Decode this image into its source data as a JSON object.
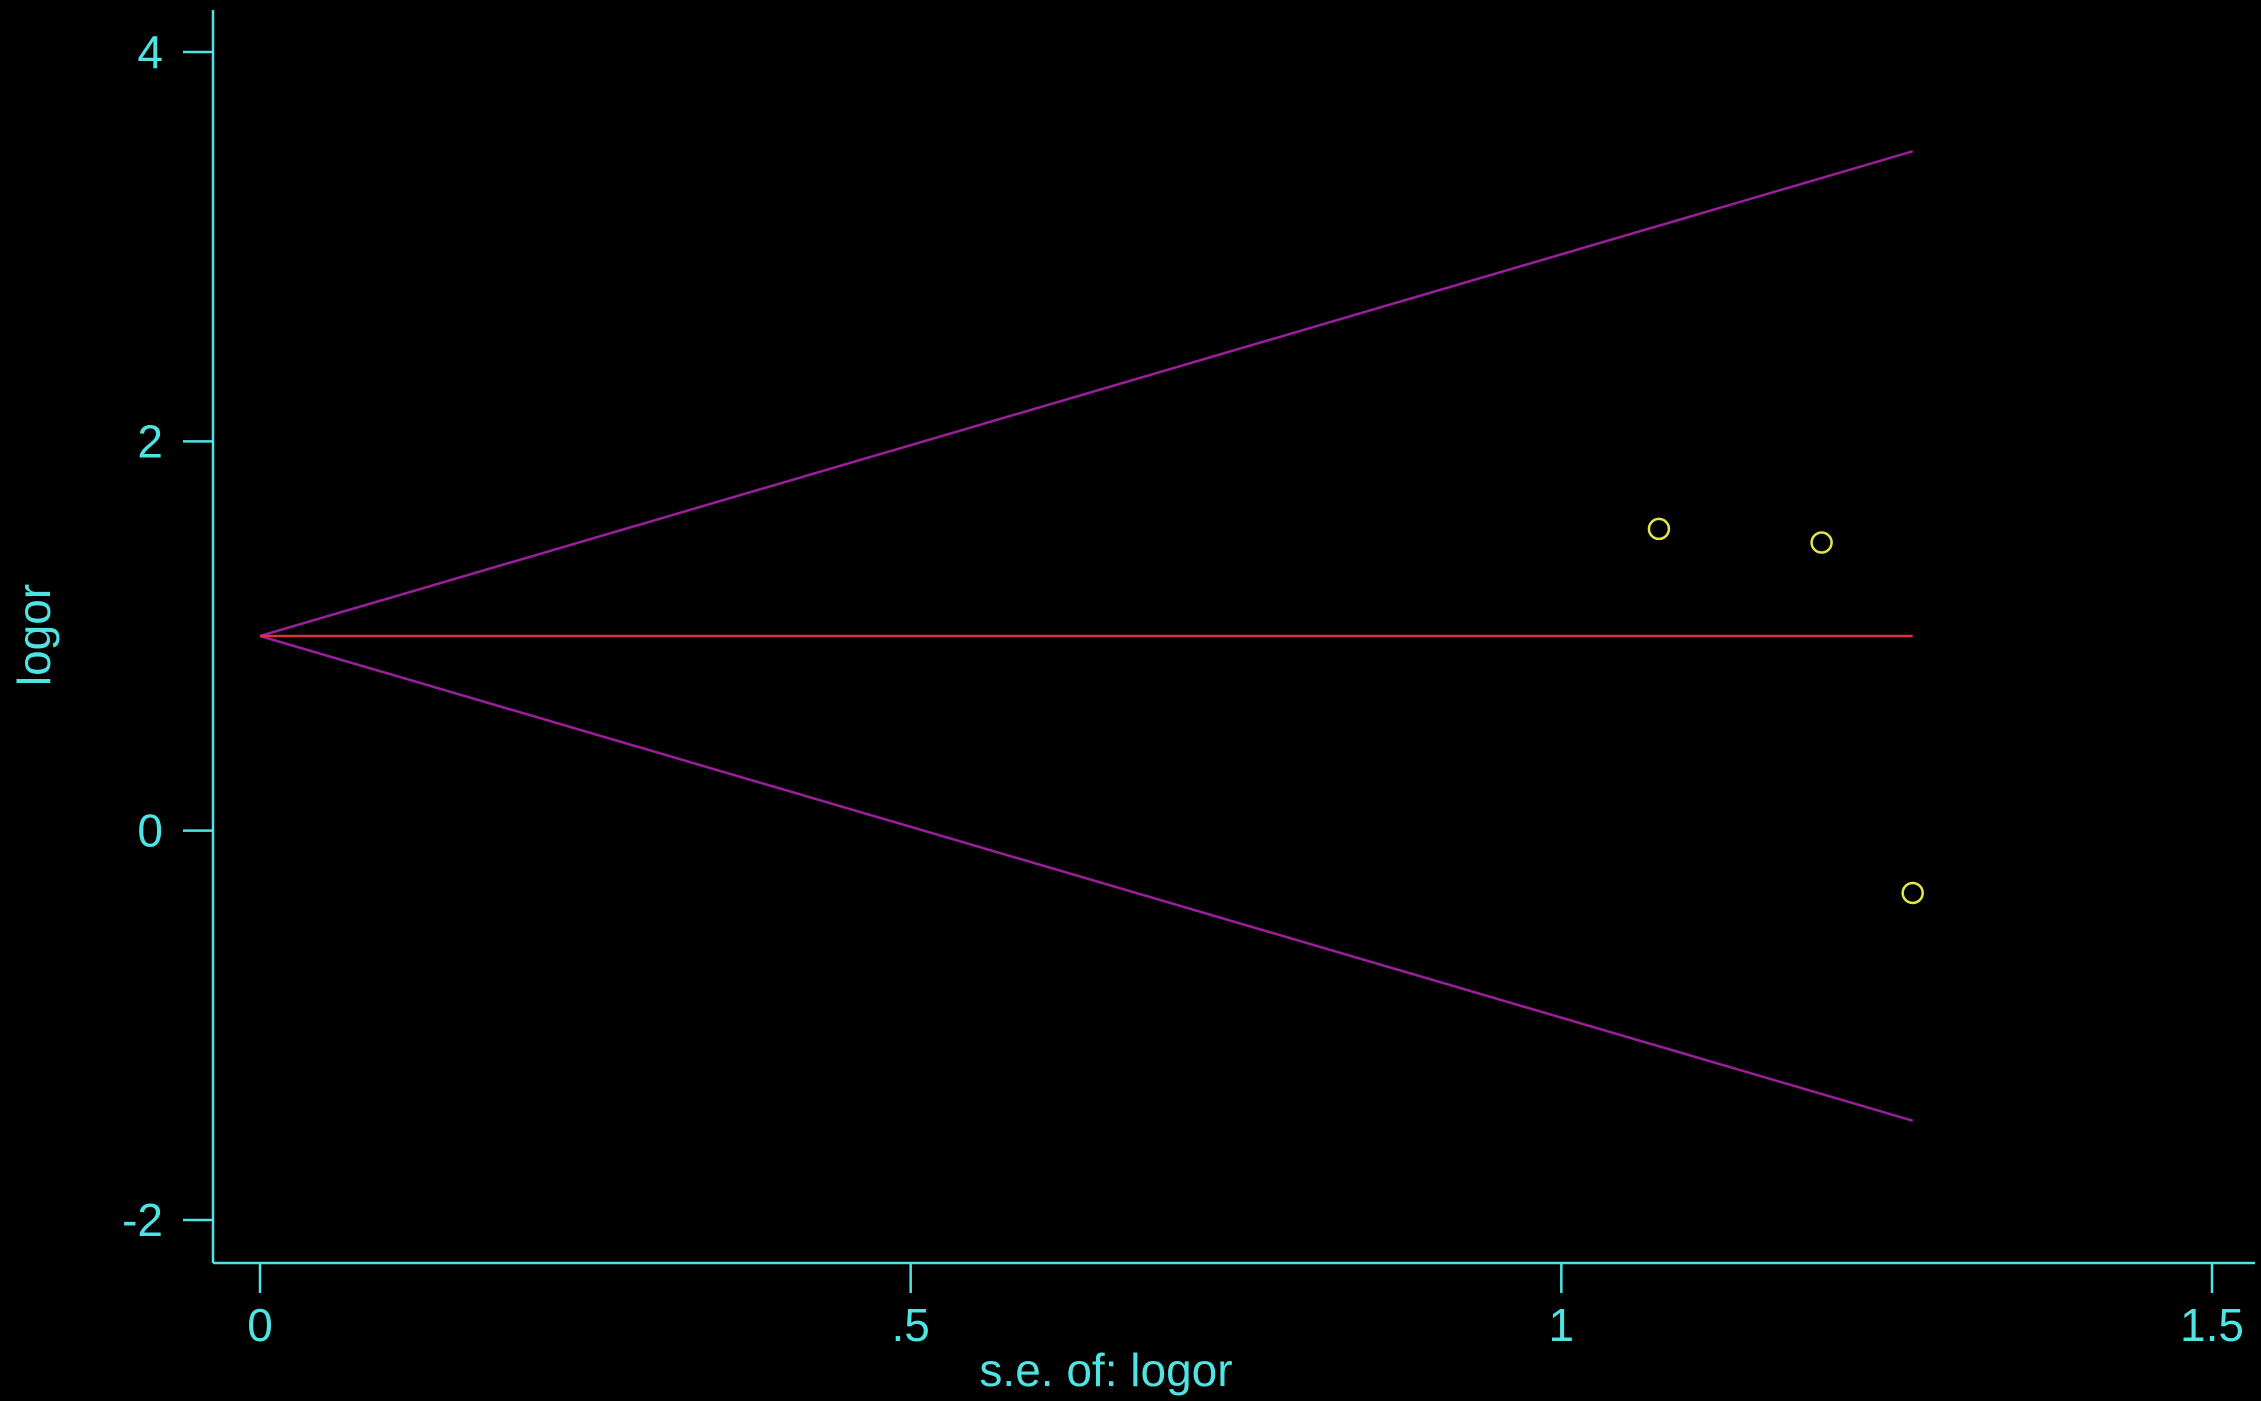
{
  "chart_data": {
    "type": "scatter",
    "title": "",
    "xlabel": "s.e. of: logor",
    "ylabel": "logor",
    "xlim": [
      0,
      1.5
    ],
    "ylim": [
      -2,
      4
    ],
    "x_ticks": [
      {
        "value": 0,
        "label": "0"
      },
      {
        "value": 0.5,
        "label": ".5"
      },
      {
        "value": 1,
        "label": "1"
      },
      {
        "value": 1.5,
        "label": "1.5"
      }
    ],
    "y_ticks": [
      {
        "value": -2,
        "label": "-2"
      },
      {
        "value": 0,
        "label": "0"
      },
      {
        "value": 2,
        "label": "2"
      },
      {
        "value": 4,
        "label": "4"
      }
    ],
    "points": [
      {
        "x": 1.075,
        "y": 1.55
      },
      {
        "x": 1.2,
        "y": 1.48
      },
      {
        "x": 1.27,
        "y": -0.32
      }
    ],
    "pooled_estimate": 1.0,
    "ci_lines": {
      "x_end": 1.27,
      "upper": [
        {
          "x": 0,
          "y": 1.0
        },
        {
          "x": 1.27,
          "y": 3.49
        }
      ],
      "lower": [
        {
          "x": 0,
          "y": 1.0
        },
        {
          "x": 1.27,
          "y": -1.49
        }
      ]
    },
    "grid": false,
    "legend": "none",
    "colors": {
      "background": "#000000",
      "axis": "#4fe3e3",
      "text": "#4fe3e3",
      "points": "#e5e54a",
      "ci_lines": "#9b1f9b",
      "pooled_line": "#e0303a"
    }
  }
}
